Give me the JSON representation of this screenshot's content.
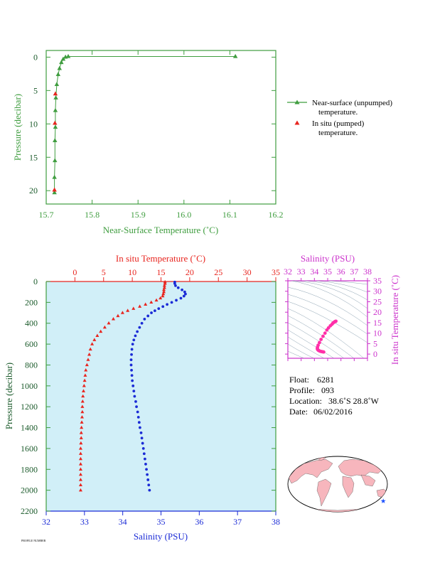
{
  "chart_data": [
    {
      "type": "line",
      "xlabel": "Near-Surface Temperature (˚C)",
      "ylabel": "Pressure (decibar)",
      "xlim": [
        15.7,
        16.2
      ],
      "ylim": [
        22,
        -1
      ],
      "x_ticks": [
        "15.7",
        "15.8",
        "15.9",
        "16.0",
        "16.1",
        "16.2"
      ],
      "y_ticks": [
        "0",
        "5",
        "10",
        "15",
        "20"
      ],
      "grid": false,
      "legend_position": "right",
      "series": [
        {
          "name": "Near-surface (unpumped) temperature.",
          "color": "#3f9d3f",
          "marker": "triangle",
          "points": [
            {
              "x": 16.112,
              "y": -0.1
            },
            {
              "x": 15.748,
              "y": -0.1
            },
            {
              "x": 15.742,
              "y": 0.0
            },
            {
              "x": 15.737,
              "y": 0.3
            },
            {
              "x": 15.733,
              "y": 0.8
            },
            {
              "x": 15.729,
              "y": 1.7
            },
            {
              "x": 15.726,
              "y": 2.6
            },
            {
              "x": 15.723,
              "y": 4.1
            },
            {
              "x": 15.721,
              "y": 6.1
            },
            {
              "x": 15.72,
              "y": 8.0
            },
            {
              "x": 15.72,
              "y": 10.5
            },
            {
              "x": 15.719,
              "y": 12.5
            },
            {
              "x": 15.719,
              "y": 15.5
            },
            {
              "x": 15.718,
              "y": 18.0
            },
            {
              "x": 15.718,
              "y": 20.3
            }
          ]
        },
        {
          "name": "In situ (pumped) temperature.",
          "color": "#e8251f",
          "marker": "triangle",
          "points": [
            {
              "x": 15.72,
              "y": 5.5
            },
            {
              "x": 15.719,
              "y": 9.9
            },
            {
              "x": 15.718,
              "y": 19.9
            }
          ]
        }
      ]
    },
    {
      "type": "line",
      "xlabel_top": "In situ Temperature (˚C)",
      "xlabel_bottom": "Salinity (PSU)",
      "ylabel": "Pressure (decibar)",
      "temperature_xlim": [
        -5,
        35
      ],
      "salinity_xlim": [
        32,
        38
      ],
      "ylim": [
        2200,
        0
      ],
      "temperature_ticks": [
        "0",
        "5",
        "10",
        "15",
        "20",
        "25",
        "30",
        "35"
      ],
      "salinity_ticks": [
        "32",
        "33",
        "34",
        "35",
        "36",
        "37",
        "38"
      ],
      "y_ticks": [
        "0",
        "200",
        "400",
        "600",
        "800",
        "1000",
        "1200",
        "1400",
        "1600",
        "1800",
        "2000",
        "2200"
      ],
      "grid": false,
      "background": "#d1eff8",
      "temperature_color": "#e8251f",
      "salinity_color": "#1b2bd6",
      "temperature_profile": [
        [
          15.7,
          5
        ],
        [
          15.7,
          20
        ],
        [
          15.6,
          40
        ],
        [
          15.6,
          60
        ],
        [
          15.5,
          80
        ],
        [
          15.5,
          100
        ],
        [
          15.4,
          120
        ],
        [
          15.3,
          140
        ],
        [
          14.9,
          160
        ],
        [
          14.2,
          180
        ],
        [
          13.3,
          200
        ],
        [
          12.3,
          220
        ],
        [
          11.3,
          240
        ],
        [
          10.2,
          260
        ],
        [
          9.2,
          280
        ],
        [
          8.3,
          300
        ],
        [
          7.5,
          330
        ],
        [
          6.7,
          360
        ],
        [
          5.9,
          400
        ],
        [
          5.2,
          440
        ],
        [
          4.5,
          480
        ],
        [
          3.9,
          520
        ],
        [
          3.4,
          560
        ],
        [
          3.0,
          600
        ],
        [
          2.7,
          650
        ],
        [
          2.5,
          700
        ],
        [
          2.3,
          750
        ],
        [
          2.1,
          800
        ],
        [
          1.9,
          850
        ],
        [
          1.8,
          900
        ],
        [
          1.7,
          950
        ],
        [
          1.6,
          1000
        ],
        [
          1.5,
          1050
        ],
        [
          1.4,
          1100
        ],
        [
          1.35,
          1150
        ],
        [
          1.3,
          1200
        ],
        [
          1.3,
          1250
        ],
        [
          1.25,
          1300
        ],
        [
          1.2,
          1350
        ],
        [
          1.15,
          1400
        ],
        [
          1.1,
          1450
        ],
        [
          1.1,
          1500
        ],
        [
          1.05,
          1550
        ],
        [
          1.0,
          1600
        ],
        [
          1.0,
          1650
        ],
        [
          1.0,
          1700
        ],
        [
          1.0,
          1750
        ],
        [
          1.0,
          1800
        ],
        [
          1.0,
          1850
        ],
        [
          1.0,
          1900
        ],
        [
          1.0,
          1950
        ],
        [
          1.0,
          2000
        ]
      ],
      "salinity_profile": [
        [
          35.36,
          5
        ],
        [
          35.36,
          20
        ],
        [
          35.38,
          40
        ],
        [
          35.45,
          60
        ],
        [
          35.55,
          80
        ],
        [
          35.62,
          100
        ],
        [
          35.64,
          120
        ],
        [
          35.6,
          140
        ],
        [
          35.52,
          160
        ],
        [
          35.4,
          180
        ],
        [
          35.28,
          200
        ],
        [
          35.16,
          220
        ],
        [
          35.05,
          240
        ],
        [
          34.94,
          260
        ],
        [
          34.84,
          280
        ],
        [
          34.75,
          300
        ],
        [
          34.66,
          330
        ],
        [
          34.57,
          360
        ],
        [
          34.5,
          400
        ],
        [
          34.44,
          440
        ],
        [
          34.38,
          480
        ],
        [
          34.33,
          520
        ],
        [
          34.29,
          560
        ],
        [
          34.26,
          600
        ],
        [
          34.24,
          650
        ],
        [
          34.23,
          700
        ],
        [
          34.22,
          750
        ],
        [
          34.22,
          800
        ],
        [
          34.23,
          850
        ],
        [
          34.24,
          900
        ],
        [
          34.25,
          950
        ],
        [
          34.27,
          1000
        ],
        [
          34.29,
          1050
        ],
        [
          34.31,
          1100
        ],
        [
          34.34,
          1150
        ],
        [
          34.36,
          1200
        ],
        [
          34.39,
          1250
        ],
        [
          34.41,
          1300
        ],
        [
          34.43,
          1350
        ],
        [
          34.45,
          1400
        ],
        [
          34.48,
          1450
        ],
        [
          34.5,
          1500
        ],
        [
          34.52,
          1550
        ],
        [
          34.54,
          1600
        ],
        [
          34.56,
          1650
        ],
        [
          34.58,
          1700
        ],
        [
          34.6,
          1750
        ],
        [
          34.62,
          1800
        ],
        [
          34.64,
          1850
        ],
        [
          34.66,
          1900
        ],
        [
          34.68,
          1950
        ],
        [
          34.7,
          2000
        ]
      ]
    },
    {
      "type": "scatter",
      "xlabel": "Salinity (PSU)",
      "ylabel": "In situ Temperature (˚C)",
      "xlim": [
        32,
        38
      ],
      "ylim": [
        -2,
        35
      ],
      "x_ticks": [
        "32",
        "33",
        "34",
        "35",
        "36",
        "37",
        "38"
      ],
      "y_ticks": [
        "0",
        "5",
        "10",
        "15",
        "20",
        "25",
        "30",
        "35"
      ],
      "color": "#ff2fa8",
      "axis_color": "#cc33cc",
      "points": [
        [
          34.7,
          1.0
        ],
        [
          34.62,
          1.1
        ],
        [
          34.54,
          1.2
        ],
        [
          34.46,
          1.3
        ],
        [
          34.38,
          1.5
        ],
        [
          34.3,
          1.8
        ],
        [
          34.24,
          2.2
        ],
        [
          34.22,
          2.6
        ],
        [
          34.23,
          3.2
        ],
        [
          34.28,
          4.2
        ],
        [
          34.38,
          5.5
        ],
        [
          34.5,
          7.0
        ],
        [
          34.65,
          8.5
        ],
        [
          34.8,
          10.0
        ],
        [
          34.94,
          11.5
        ],
        [
          35.06,
          12.5
        ],
        [
          35.2,
          13.5
        ],
        [
          35.32,
          14.2
        ],
        [
          35.4,
          14.8
        ],
        [
          35.48,
          15.2
        ],
        [
          35.55,
          15.5
        ],
        [
          35.6,
          15.6
        ],
        [
          35.62,
          15.7
        ]
      ]
    }
  ],
  "meta": {
    "float": "6281",
    "profile": "093",
    "location": "38.6˚S  28.8˚W",
    "date": "06/02/2016"
  },
  "labels": {
    "float_label": "Float:",
    "profile_label": "Profile:",
    "location_label": "Location:",
    "date_label": "Date:",
    "footer": "PROFILE NUMBER"
  },
  "map": {
    "land_color": "#f7b6bd",
    "ocean_color": "#ffffff",
    "marker_color": "#1a4fff",
    "marker_icon": "star-icon"
  }
}
